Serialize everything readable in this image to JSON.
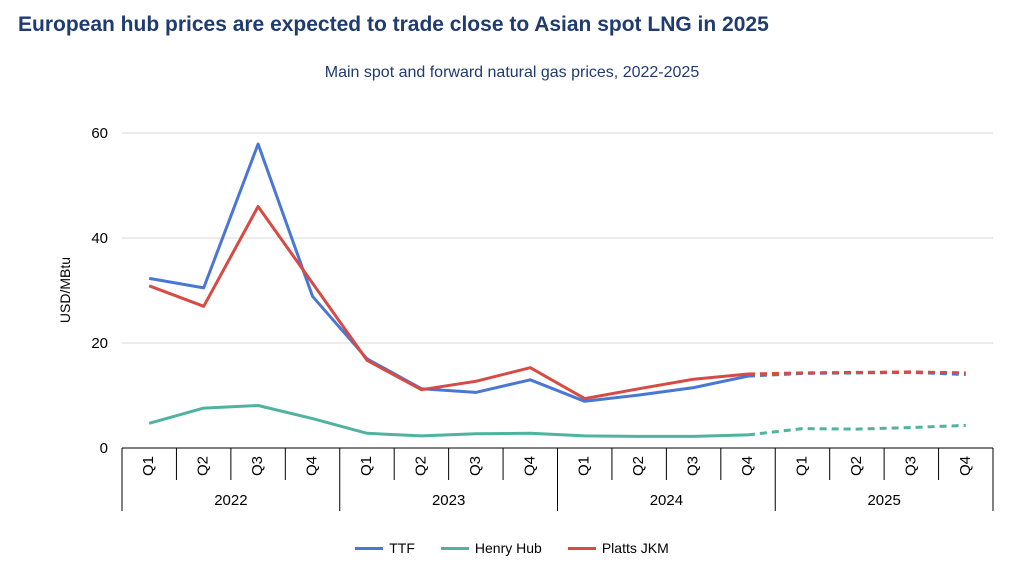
{
  "title": "European hub prices are expected to trade close to Asian spot LNG in 2025",
  "subtitle": "Main spot and forward natural gas prices, 2022-2025",
  "chart_data": {
    "type": "line",
    "ylabel": "USD/MBtu",
    "ylim": [
      0,
      60
    ],
    "yticks": [
      0,
      20,
      40,
      60
    ],
    "grid": true,
    "legend_position": "bottom",
    "years": [
      "2022",
      "2023",
      "2024",
      "2025"
    ],
    "categories": [
      "Q1",
      "Q2",
      "Q3",
      "Q4",
      "Q1",
      "Q2",
      "Q3",
      "Q4",
      "Q1",
      "Q2",
      "Q3",
      "Q4",
      "Q1",
      "Q2",
      "Q3",
      "Q4"
    ],
    "forecast_start_index": 11,
    "series": [
      {
        "name": "TTF",
        "color": "#4a77d4",
        "values": [
          32.3,
          30.5,
          57.9,
          28.9,
          17.0,
          11.3,
          10.6,
          13.0,
          8.9,
          10.1,
          11.5,
          13.7,
          14.2,
          14.3,
          14.4,
          14.0
        ]
      },
      {
        "name": "Henry Hub",
        "color": "#4fb3a0",
        "values": [
          4.7,
          7.6,
          8.1,
          5.6,
          2.8,
          2.3,
          2.7,
          2.8,
          2.3,
          2.2,
          2.2,
          2.5,
          3.7,
          3.6,
          3.9,
          4.3
        ]
      },
      {
        "name": "Platts JKM",
        "color": "#d64b45",
        "values": [
          30.9,
          27.0,
          46.0,
          31.4,
          16.7,
          11.1,
          12.7,
          15.3,
          9.4,
          11.3,
          13.1,
          14.1,
          14.3,
          14.4,
          14.5,
          14.3
        ]
      }
    ]
  }
}
